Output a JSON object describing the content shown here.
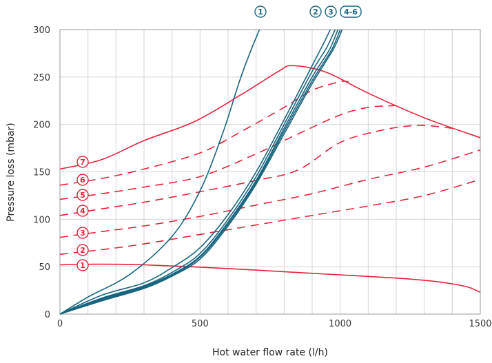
{
  "chart_data": {
    "type": "line",
    "xlabel": "Hot water flow rate (l/h)",
    "ylabel": "Pressure loss (mbar)",
    "xlim": [
      0,
      1500
    ],
    "ylim": [
      0,
      300
    ],
    "x_ticks": [
      0,
      500,
      1000,
      1500
    ],
    "y_ticks": [
      0,
      50,
      100,
      150,
      200,
      250,
      300
    ],
    "grid": "vertical and horizontal",
    "colors": {
      "pump": "#e8213b",
      "loss": "#17647e"
    },
    "pump_curves": [
      {
        "label": "1",
        "style": "solid",
        "points": [
          [
            0,
            52
          ],
          [
            120,
            52.6
          ],
          [
            300,
            52
          ],
          [
            600,
            48
          ],
          [
            900,
            43
          ],
          [
            1200,
            38
          ],
          [
            1350,
            34
          ],
          [
            1450,
            29
          ],
          [
            1500,
            23
          ]
        ]
      },
      {
        "label": "2",
        "style": "dashed",
        "points": [
          [
            0,
            63
          ],
          [
            150,
            68
          ],
          [
            300,
            74
          ],
          [
            500,
            84
          ],
          [
            700,
            94
          ],
          [
            900,
            104
          ],
          [
            1100,
            114
          ],
          [
            1300,
            125
          ],
          [
            1500,
            142
          ]
        ]
      },
      {
        "label": "3",
        "style": "dashed",
        "points": [
          [
            0,
            81
          ],
          [
            150,
            87
          ],
          [
            300,
            93
          ],
          [
            500,
            103
          ],
          [
            700,
            115
          ],
          [
            900,
            127
          ],
          [
            1100,
            142
          ],
          [
            1300,
            155
          ],
          [
            1500,
            173
          ]
        ]
      },
      {
        "label": "4",
        "style": "dashed",
        "points": [
          [
            0,
            104
          ],
          [
            150,
            111
          ],
          [
            300,
            118
          ],
          [
            500,
            129
          ],
          [
            700,
            141
          ],
          [
            850,
            152
          ],
          [
            1000,
            181
          ],
          [
            1150,
            194
          ],
          [
            1280,
            199
          ],
          [
            1400,
            196
          ]
        ]
      },
      {
        "label": "5",
        "style": "dashed",
        "points": [
          [
            0,
            121
          ],
          [
            150,
            127
          ],
          [
            300,
            134
          ],
          [
            500,
            145
          ],
          [
            700,
            169
          ],
          [
            850,
            190
          ],
          [
            1000,
            210
          ],
          [
            1100,
            218
          ],
          [
            1200,
            220
          ]
        ]
      },
      {
        "label": "6",
        "style": "dashed",
        "points": [
          [
            0,
            136
          ],
          [
            150,
            143
          ],
          [
            300,
            153
          ],
          [
            500,
            170
          ],
          [
            650,
            193
          ],
          [
            800,
            218
          ],
          [
            900,
            236
          ],
          [
            1000,
            245
          ],
          [
            1030,
            245
          ]
        ]
      },
      {
        "label": "7",
        "style": "solid",
        "points": [
          [
            0,
            153
          ],
          [
            150,
            163
          ],
          [
            300,
            183
          ],
          [
            480,
            203
          ],
          [
            650,
            232
          ],
          [
            780,
            256
          ],
          [
            830,
            262
          ],
          [
            950,
            255
          ],
          [
            1100,
            233
          ],
          [
            1300,
            207
          ],
          [
            1500,
            186
          ]
        ]
      }
    ],
    "loss_curves": [
      {
        "label": "1",
        "points": [
          [
            0,
            0
          ],
          [
            100,
            18
          ],
          [
            250,
            42
          ],
          [
            400,
            82
          ],
          [
            500,
            130
          ],
          [
            580,
            190
          ],
          [
            640,
            245
          ],
          [
            680,
            277
          ],
          [
            712,
            300
          ]
        ]
      },
      {
        "label": "2",
        "points": [
          [
            0,
            0
          ],
          [
            150,
            20
          ],
          [
            300,
            33
          ],
          [
            400,
            49
          ],
          [
            500,
            70
          ],
          [
            600,
            105
          ],
          [
            700,
            150
          ],
          [
            800,
            205
          ],
          [
            900,
            262
          ],
          [
            940,
            285
          ],
          [
            965,
            300
          ]
        ]
      },
      {
        "label": "3",
        "points": [
          [
            0,
            0
          ],
          [
            150,
            17
          ],
          [
            300,
            30
          ],
          [
            400,
            44
          ],
          [
            500,
            64
          ],
          [
            600,
            100
          ],
          [
            700,
            145
          ],
          [
            800,
            200
          ],
          [
            900,
            256
          ],
          [
            950,
            280
          ],
          [
            982,
            300
          ]
        ]
      },
      {
        "label": "4",
        "points": [
          [
            0,
            0
          ],
          [
            150,
            16
          ],
          [
            300,
            29
          ],
          [
            400,
            42
          ],
          [
            500,
            61
          ],
          [
            600,
            97
          ],
          [
            700,
            141
          ],
          [
            800,
            196
          ],
          [
            900,
            250
          ],
          [
            960,
            278
          ],
          [
            992,
            300
          ]
        ]
      },
      {
        "label": "5",
        "points": [
          [
            0,
            0
          ],
          [
            150,
            15
          ],
          [
            300,
            28
          ],
          [
            400,
            41
          ],
          [
            500,
            60
          ],
          [
            600,
            95
          ],
          [
            700,
            139
          ],
          [
            800,
            193
          ],
          [
            900,
            246
          ],
          [
            970,
            279
          ],
          [
            1000,
            300
          ]
        ]
      },
      {
        "label": "6",
        "points": [
          [
            0,
            0
          ],
          [
            150,
            14
          ],
          [
            300,
            27
          ],
          [
            400,
            40
          ],
          [
            500,
            58
          ],
          [
            600,
            93
          ],
          [
            700,
            137
          ],
          [
            800,
            190
          ],
          [
            900,
            243
          ],
          [
            975,
            279
          ],
          [
            1007,
            300
          ]
        ]
      }
    ],
    "pump_labels": [
      "1",
      "2",
      "3",
      "4",
      "5",
      "6",
      "7"
    ],
    "loss_labels": [
      "1",
      "2",
      "3",
      "4-6"
    ]
  }
}
